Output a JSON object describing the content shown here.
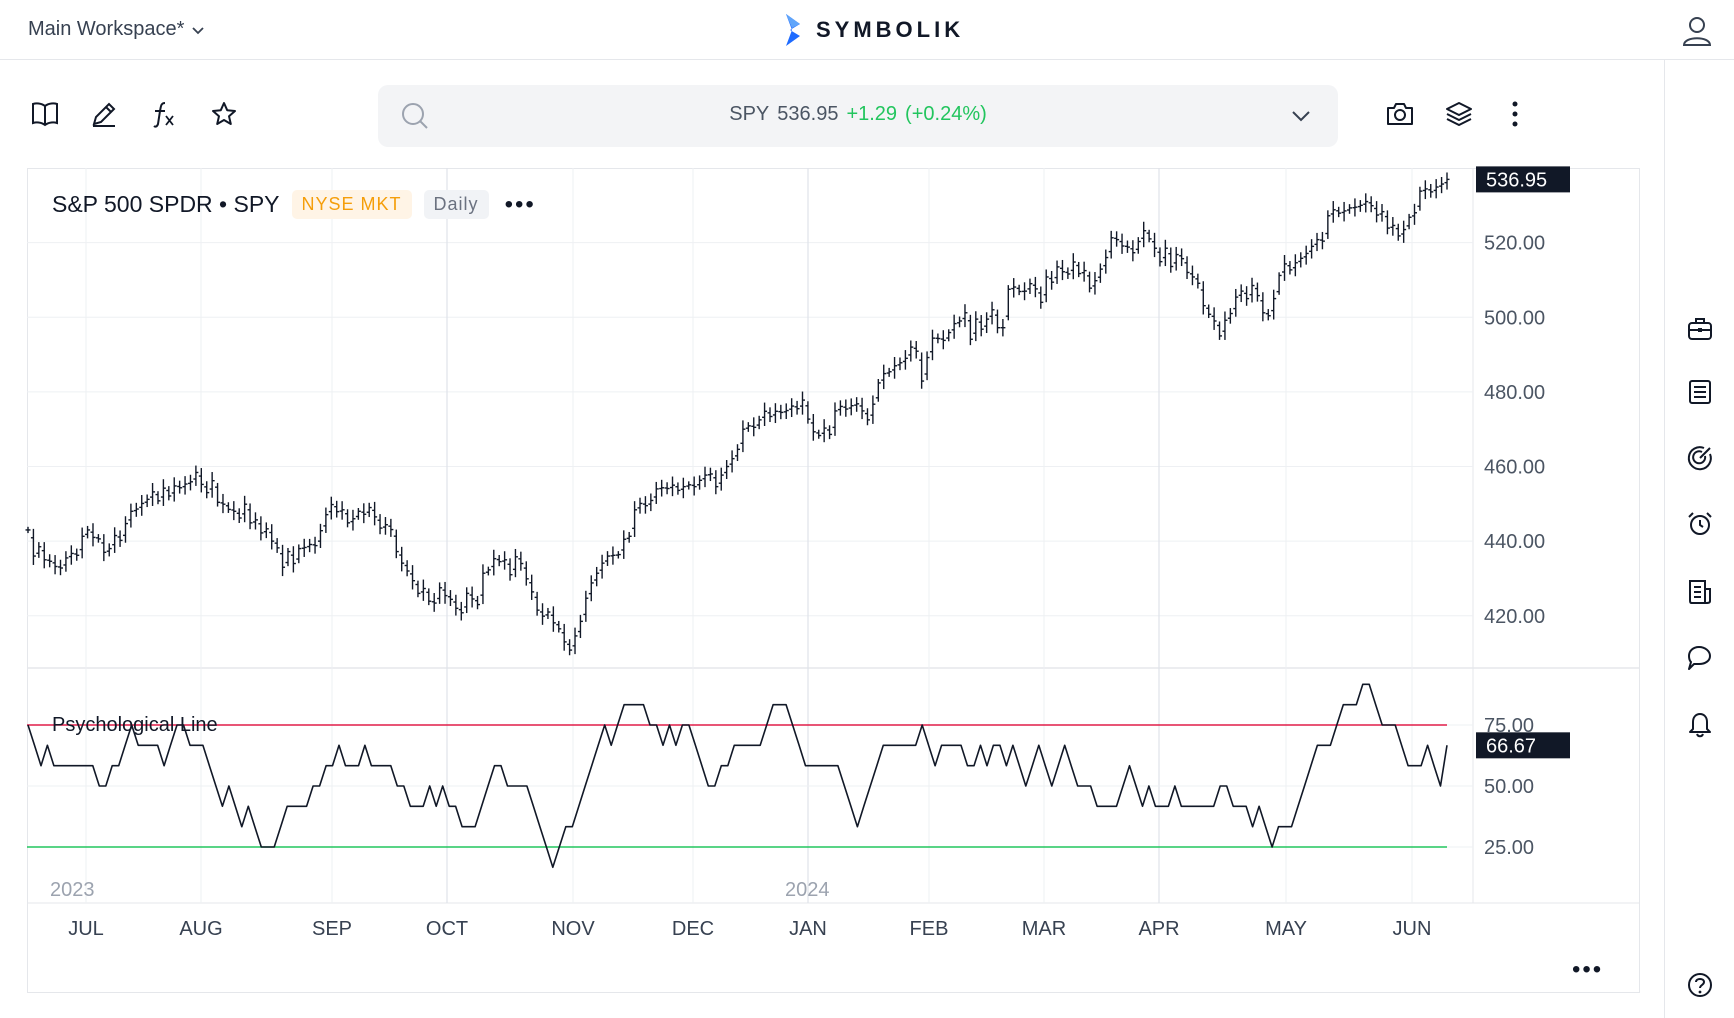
{
  "header": {
    "workspace_label": "Main Workspace*",
    "brand": "SYMBOLIK",
    "brand_color": "#1e6bff"
  },
  "toolbar": {
    "left_icons": [
      "book-icon",
      "pencil-icon",
      "function-icon",
      "star-icon"
    ],
    "right_icons": [
      "camera-icon",
      "layers-icon",
      "kebab-menu-icon"
    ]
  },
  "quote": {
    "symbol": "SPY",
    "price": "536.95",
    "change": "+1.29",
    "change_pct": "(+0.24%)",
    "change_color": "#22c55e"
  },
  "chart": {
    "name": "S&P 500 SPDR • SPY",
    "exchange": "NYSE MKT",
    "interval": "Daily",
    "indicator_name": "Psychological Line",
    "more_label": "•••"
  },
  "right_rail": {
    "icons": [
      "briefcase-icon",
      "list-icon",
      "target-icon",
      "alarm-icon",
      "news-icon",
      "chat-icon",
      "bell-icon",
      "help-icon"
    ]
  },
  "chart_data": [
    {
      "type": "ohlc",
      "series": [
        {
          "name": "SPY"
        }
      ],
      "x_ticks": [
        "JUL",
        "AUG",
        "SEP",
        "OCT",
        "NOV",
        "DEC",
        "JAN",
        "FEB",
        "MAR",
        "APR",
        "MAY",
        "JUN"
      ],
      "year_labels": [
        "2023",
        "2024"
      ],
      "y_ticks": [
        "520.00",
        "500.00",
        "480.00",
        "460.00",
        "440.00",
        "420.00"
      ],
      "ylim": [
        406,
        540
      ],
      "last_price": "536.95",
      "closes": [
        443.0,
        436.0,
        438.5,
        435.0,
        434.6,
        433.2,
        432.8,
        435.5,
        436.7,
        436.2,
        441.3,
        443.0,
        441.0,
        440.6,
        437.0,
        438.0,
        441.5,
        440.2,
        444.7,
        448.0,
        448.6,
        450.1,
        451.2,
        453.2,
        450.8,
        454.2,
        452.1,
        454.8,
        454.3,
        455.3,
        455.9,
        458.4,
        455.2,
        453.0,
        456.2,
        450.4,
        449.9,
        448.5,
        448.0,
        446.2,
        449.9,
        444.9,
        445.7,
        442.2,
        443.3,
        440.0,
        438.2,
        433.0,
        437.2,
        434.0,
        438.0,
        438.3,
        439.1,
        438.8,
        442.8,
        447.1,
        449.8,
        447.9,
        448.4,
        444.9,
        446.0,
        448.0,
        447.2,
        449.0,
        446.5,
        443.5,
        444.4,
        443.1,
        437.2,
        434.1,
        432.0,
        429.4,
        426.0,
        427.3,
        423.9,
        423.4,
        427.5,
        425.4,
        424.4,
        422.0,
        420.8,
        426.0,
        424.5,
        423.0,
        431.4,
        432.3,
        435.3,
        434.5,
        435.0,
        431.0,
        435.8,
        434.0,
        429.9,
        426.4,
        421.5,
        419.9,
        421.0,
        418.1,
        416.5,
        413.0,
        410.8,
        414.6,
        418.5,
        424.7,
        428.8,
        431.4,
        434.1,
        436.0,
        436.2,
        436.4,
        440.5,
        441.3,
        448.4,
        450.1,
        449.5,
        450.9,
        454.0,
        454.3,
        454.1,
        455.0,
        453.6,
        454.6,
        455.1,
        454.6,
        456.3,
        457.7,
        458.0,
        454.6,
        457.7,
        460.0,
        462.1,
        464.6,
        470.0,
        470.9,
        470.5,
        472.5,
        474.8,
        473.4,
        474.8,
        474.5,
        475.0,
        476.2,
        475.5,
        477.8,
        472.7,
        469.3,
        468.3,
        470.3,
        468.6,
        474.9,
        476.1,
        475.4,
        476.3,
        476.8,
        474.9,
        472.5,
        476.7,
        482.4,
        484.9,
        485.4,
        487.0,
        487.8,
        489.0,
        492.0,
        490.9,
        482.9,
        489.2,
        494.4,
        494.3,
        493.8,
        495.9,
        498.3,
        499.0,
        501.2,
        494.1,
        499.5,
        496.8,
        499.5,
        502.0,
        497.2,
        497.2,
        507.5,
        508.1,
        506.9,
        507.0,
        509.0,
        507.6,
        504.0,
        510.8,
        509.4,
        513.5,
        512.2,
        511.6,
        514.8,
        511.7,
        512.5,
        507.8,
        509.8,
        512.9,
        516.0,
        521.3,
        520.8,
        519.1,
        518.8,
        517.3,
        520.3,
        523.2,
        521.0,
        518.5,
        514.9,
        518.5,
        513.6,
        516.8,
        515.7,
        512.0,
        510.8,
        509.1,
        503.1,
        500.8,
        499.0,
        495.0,
        499.2,
        501.0,
        505.4,
        507.0,
        505.0,
        508.5,
        505.8,
        501.2,
        500.4,
        505.0,
        511.2,
        514.3,
        512.7,
        514.6,
        515.8,
        517.1,
        519.0,
        520.8,
        520.4,
        527.2,
        528.8,
        527.9,
        528.5,
        529.3,
        529.5,
        530.0,
        531.0,
        529.9,
        527.4,
        528.3,
        523.9,
        524.6,
        521.8,
        523.5,
        526.8,
        528.0,
        533.8,
        534.4,
        533.6,
        534.9,
        535.7,
        536.95
      ]
    },
    {
      "type": "line",
      "series": [
        {
          "name": "Psychological Line"
        }
      ],
      "y_ticks": [
        "75.00",
        "50.00",
        "25.00"
      ],
      "ylim": [
        0,
        100
      ],
      "overbought": 75,
      "oversold": 25,
      "last_value": "66.67",
      "upper_color": "#e11d48",
      "lower_color": "#22c55e",
      "values": [
        75,
        66.67,
        58.33,
        66.67,
        58.33,
        58.33,
        58.33,
        58.33,
        58.33,
        58.33,
        58.33,
        50,
        50,
        58.33,
        58.33,
        66.67,
        75,
        66.67,
        66.67,
        66.67,
        66.67,
        58.33,
        66.67,
        75,
        75,
        66.67,
        66.67,
        66.67,
        58.33,
        50,
        41.67,
        50,
        41.67,
        33.33,
        41.67,
        33.33,
        25,
        25,
        25,
        33.33,
        41.67,
        41.67,
        41.67,
        41.67,
        50,
        50,
        58.33,
        58.33,
        66.67,
        58.33,
        58.33,
        58.33,
        66.67,
        58.33,
        58.33,
        58.33,
        58.33,
        50,
        50,
        41.67,
        41.67,
        41.67,
        50,
        41.67,
        50,
        41.67,
        41.67,
        33.33,
        33.33,
        33.33,
        41.67,
        50,
        58.33,
        58.33,
        50,
        50,
        50,
        50,
        41.67,
        33.33,
        25,
        16.67,
        25,
        33.33,
        33.33,
        41.67,
        50,
        58.33,
        66.67,
        75,
        66.67,
        75,
        83.33,
        83.33,
        83.33,
        83.33,
        75,
        75,
        66.67,
        75,
        66.67,
        75,
        75,
        66.67,
        58.33,
        50,
        50,
        58.33,
        58.33,
        66.67,
        66.67,
        66.67,
        66.67,
        66.67,
        75,
        83.33,
        83.33,
        83.33,
        75,
        66.67,
        58.33,
        58.33,
        58.33,
        58.33,
        58.33,
        58.33,
        50,
        41.67,
        33.33,
        41.67,
        50,
        58.33,
        66.67,
        66.67,
        66.67,
        66.67,
        66.67,
        66.67,
        75,
        66.67,
        58.33,
        66.67,
        66.67,
        66.67,
        66.67,
        58.33,
        58.33,
        66.67,
        58.33,
        66.67,
        66.67,
        58.33,
        66.67,
        58.33,
        50,
        58.33,
        66.67,
        58.33,
        50,
        58.33,
        66.67,
        58.33,
        50,
        50,
        50,
        41.67,
        41.67,
        41.67,
        41.67,
        50,
        58.33,
        50,
        41.67,
        50,
        41.67,
        41.67,
        41.67,
        50,
        41.67,
        41.67,
        41.67,
        41.67,
        41.67,
        41.67,
        50,
        50,
        41.67,
        41.67,
        41.67,
        33.33,
        41.67,
        33.33,
        25,
        33.33,
        33.33,
        33.33,
        41.67,
        50,
        58.33,
        66.67,
        66.67,
        66.67,
        75,
        83.33,
        83.33,
        83.33,
        91.67,
        91.67,
        83.33,
        75,
        75,
        75,
        66.67,
        58.33,
        58.33,
        58.33,
        66.67,
        58.33,
        50,
        66.67
      ]
    }
  ]
}
